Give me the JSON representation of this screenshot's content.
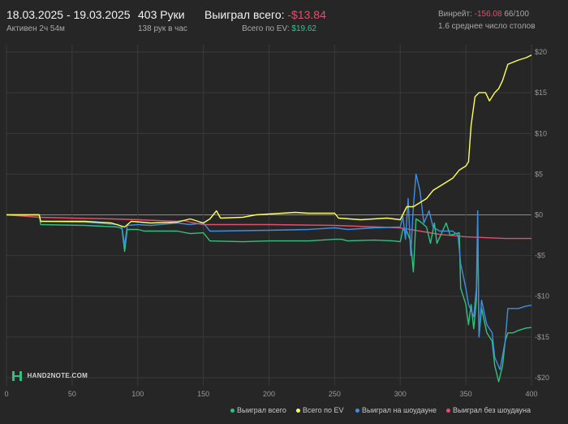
{
  "header": {
    "date_range": "18.03.2025 - 19.03.2025",
    "active_time": "Активен 2ч 54м",
    "hands_total": "403 Руки",
    "hands_per_hour": "138 рук в час",
    "won_total_label": "Выиграл всего:",
    "won_total_value": "-$13.84",
    "ev_label": "Всего по EV:",
    "ev_value": "$19.62",
    "winrate_label": "Винрейт:",
    "winrate_value": "-156.08",
    "winrate_count": "66/100",
    "avg_tables": "1.6 среднее число столов"
  },
  "brand": {
    "logo_text": "HAND2NOTE.COM"
  },
  "colors": {
    "background": "#262626",
    "won_total": "#2ec27e",
    "ev": "#ffff57",
    "showdown": "#3f8fe0",
    "non_showdown": "#e0506e",
    "grid": "#3a3a3a"
  },
  "chart_data": {
    "type": "line",
    "xlim": [
      0,
      400
    ],
    "ylim": [
      -21,
      20
    ],
    "x_ticks": [
      "0",
      "50",
      "100",
      "150",
      "200",
      "250",
      "300",
      "350",
      "400"
    ],
    "y_ticks": [
      "$20",
      "$15",
      "$10",
      "$5",
      "$0",
      "-$5",
      "-$10",
      "-$15",
      "-$20"
    ],
    "x_tick_values": [
      0,
      50,
      100,
      150,
      200,
      250,
      300,
      350,
      400
    ],
    "y_tick_values": [
      20,
      15,
      10,
      5,
      0,
      -5,
      -10,
      -15,
      -20
    ],
    "grid": true,
    "legend_position": "bottom-right",
    "series": [
      {
        "name": "Выиграл всего",
        "color": "#2ec27e",
        "points": [
          [
            0,
            0
          ],
          [
            25,
            0
          ],
          [
            26,
            -1.2
          ],
          [
            60,
            -1.3
          ],
          [
            85,
            -1.5
          ],
          [
            88,
            -1.7
          ],
          [
            90,
            -4.5
          ],
          [
            92,
            -1.8
          ],
          [
            100,
            -1.8
          ],
          [
            105,
            -2.0
          ],
          [
            130,
            -2.0
          ],
          [
            140,
            -2.3
          ],
          [
            150,
            -2.2
          ],
          [
            155,
            -3.2
          ],
          [
            180,
            -3.3
          ],
          [
            200,
            -3.2
          ],
          [
            230,
            -3.2
          ],
          [
            250,
            -3.0
          ],
          [
            255,
            -3.0
          ],
          [
            260,
            -3.2
          ],
          [
            280,
            -3.1
          ],
          [
            295,
            -3.2
          ],
          [
            300,
            -3.3
          ],
          [
            302,
            -1.8
          ],
          [
            305,
            -2.0
          ],
          [
            308,
            -3.3
          ],
          [
            310,
            -7.0
          ],
          [
            312,
            -0.5
          ],
          [
            315,
            -0.8
          ],
          [
            320,
            -1.5
          ],
          [
            323,
            -3.5
          ],
          [
            326,
            -1.0
          ],
          [
            328,
            -3.5
          ],
          [
            335,
            -1.0
          ],
          [
            338,
            -2.5
          ],
          [
            345,
            -2.2
          ],
          [
            346,
            -9.0
          ],
          [
            350,
            -11.0
          ],
          [
            352,
            -13.5
          ],
          [
            354,
            -11.0
          ],
          [
            356,
            -14.0
          ],
          [
            358,
            -10.5
          ],
          [
            359,
            -1.0
          ],
          [
            360,
            -15.0
          ],
          [
            362,
            -11.5
          ],
          [
            366,
            -14.5
          ],
          [
            370,
            -15.5
          ],
          [
            372,
            -18.5
          ],
          [
            375,
            -20.5
          ],
          [
            378,
            -18.5
          ],
          [
            380,
            -15.5
          ],
          [
            382,
            -14.5
          ],
          [
            386,
            -14.5
          ],
          [
            390,
            -14.2
          ],
          [
            396,
            -13.9
          ],
          [
            400,
            -13.84
          ]
        ]
      },
      {
        "name": "Всего по EV",
        "color": "#ffff57",
        "points": [
          [
            0,
            0
          ],
          [
            25,
            0
          ],
          [
            26,
            -0.8
          ],
          [
            60,
            -0.8
          ],
          [
            80,
            -1.0
          ],
          [
            90,
            -1.5
          ],
          [
            95,
            -0.8
          ],
          [
            110,
            -1.0
          ],
          [
            130,
            -0.9
          ],
          [
            140,
            -0.5
          ],
          [
            150,
            -1.0
          ],
          [
            155,
            -0.5
          ],
          [
            160,
            0.5
          ],
          [
            163,
            -0.4
          ],
          [
            180,
            -0.3
          ],
          [
            190,
            0.0
          ],
          [
            200,
            0.1
          ],
          [
            210,
            0.2
          ],
          [
            220,
            0.3
          ],
          [
            230,
            0.2
          ],
          [
            250,
            0.2
          ],
          [
            253,
            -0.4
          ],
          [
            270,
            -0.6
          ],
          [
            290,
            -0.4
          ],
          [
            300,
            -0.6
          ],
          [
            305,
            1.0
          ],
          [
            310,
            1.0
          ],
          [
            315,
            1.5
          ],
          [
            320,
            2.0
          ],
          [
            325,
            3.0
          ],
          [
            330,
            3.5
          ],
          [
            335,
            4.0
          ],
          [
            340,
            4.5
          ],
          [
            345,
            5.5
          ],
          [
            350,
            6.0
          ],
          [
            352,
            6.5
          ],
          [
            354,
            11.0
          ],
          [
            357,
            14.5
          ],
          [
            360,
            15.0
          ],
          [
            365,
            15.0
          ],
          [
            368,
            14.0
          ],
          [
            372,
            15.0
          ],
          [
            375,
            15.5
          ],
          [
            378,
            16.5
          ],
          [
            380,
            17.5
          ],
          [
            382,
            18.5
          ],
          [
            390,
            19.0
          ],
          [
            396,
            19.3
          ],
          [
            400,
            19.62
          ]
        ]
      },
      {
        "name": "Выиграл на шоудауне",
        "color": "#3f8fe0",
        "points": [
          [
            0,
            0
          ],
          [
            25,
            0
          ],
          [
            26,
            -0.8
          ],
          [
            60,
            -0.9
          ],
          [
            85,
            -1.2
          ],
          [
            88,
            -1.5
          ],
          [
            90,
            -3.8
          ],
          [
            92,
            -1.3
          ],
          [
            100,
            -1.2
          ],
          [
            110,
            -1.3
          ],
          [
            130,
            -1.0
          ],
          [
            140,
            -1.2
          ],
          [
            150,
            -1.0
          ],
          [
            155,
            -2.0
          ],
          [
            160,
            -2.0
          ],
          [
            200,
            -1.9
          ],
          [
            230,
            -1.8
          ],
          [
            250,
            -1.6
          ],
          [
            260,
            -1.8
          ],
          [
            280,
            -1.6
          ],
          [
            300,
            -1.5
          ],
          [
            302,
            -0.2
          ],
          [
            304,
            -3.0
          ],
          [
            306,
            2.0
          ],
          [
            308,
            -5.0
          ],
          [
            310,
            1.0
          ],
          [
            312,
            5.0
          ],
          [
            315,
            3.0
          ],
          [
            318,
            -1.0
          ],
          [
            322,
            0.5
          ],
          [
            325,
            -1.5
          ],
          [
            330,
            -2.0
          ],
          [
            340,
            -2.0
          ],
          [
            344,
            -2.5
          ],
          [
            346,
            -6.0
          ],
          [
            350,
            -9.0
          ],
          [
            352,
            -11.0
          ],
          [
            356,
            -12.5
          ],
          [
            358,
            -9.0
          ],
          [
            359,
            0.5
          ],
          [
            360,
            -15.0
          ],
          [
            362,
            -10.5
          ],
          [
            366,
            -13.5
          ],
          [
            370,
            -14.5
          ],
          [
            372,
            -17.5
          ],
          [
            376,
            -19.0
          ],
          [
            380,
            -15.5
          ],
          [
            382,
            -11.5
          ],
          [
            390,
            -11.5
          ],
          [
            396,
            -11.2
          ],
          [
            400,
            -11.1
          ]
        ]
      },
      {
        "name": "Выиграл без шоудауна",
        "color": "#e0506e",
        "points": [
          [
            0,
            0
          ],
          [
            25,
            -0.3
          ],
          [
            50,
            -0.4
          ],
          [
            80,
            -0.5
          ],
          [
            100,
            -0.6
          ],
          [
            130,
            -0.8
          ],
          [
            135,
            -0.7
          ],
          [
            140,
            -0.9
          ],
          [
            150,
            -1.2
          ],
          [
            200,
            -1.2
          ],
          [
            250,
            -1.3
          ],
          [
            300,
            -1.6
          ],
          [
            315,
            -2.0
          ],
          [
            330,
            -2.4
          ],
          [
            350,
            -2.7
          ],
          [
            380,
            -2.9
          ],
          [
            400,
            -2.9
          ]
        ]
      }
    ]
  },
  "legend": [
    {
      "label": "Выиграл всего",
      "color": "#2ec27e"
    },
    {
      "label": "Всего по EV",
      "color": "#ffff57"
    },
    {
      "label": "Выиграл на шоудауне",
      "color": "#3f8fe0"
    },
    {
      "label": "Выиграл без шоудауна",
      "color": "#e0506e"
    }
  ]
}
